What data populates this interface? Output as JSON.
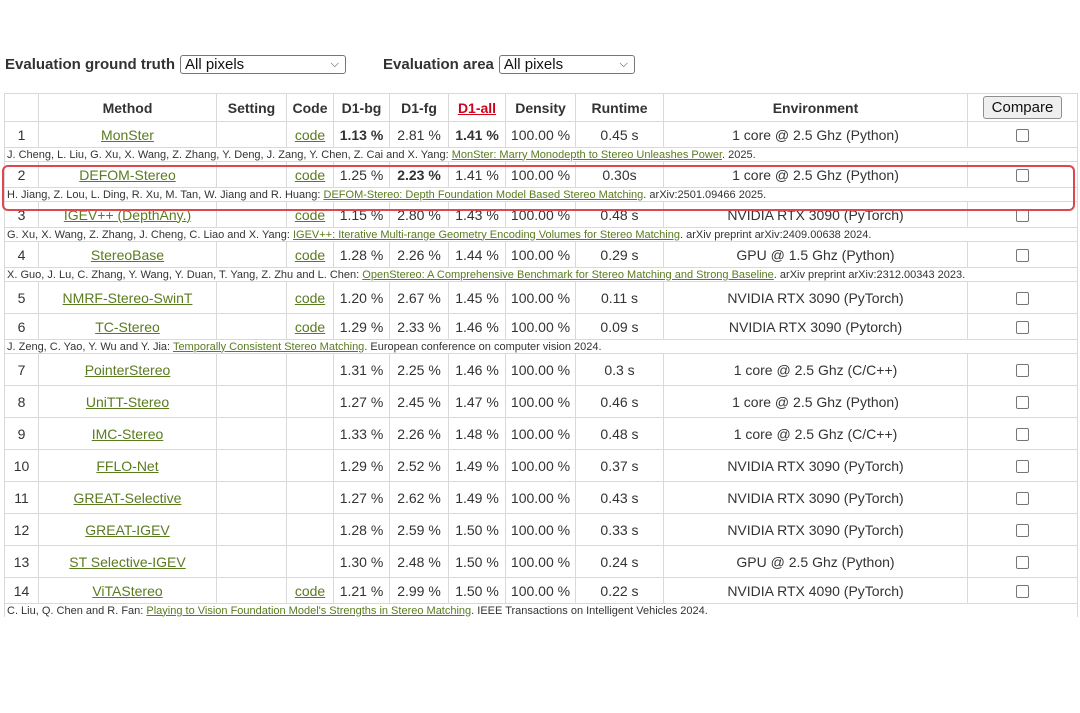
{
  "filters": {
    "truth_label": "Evaluation ground truth",
    "truth_value": "All pixels",
    "area_label": "Evaluation area",
    "area_value": "All pixels"
  },
  "table": {
    "headers": {
      "rank": "",
      "method": "Method",
      "setting": "Setting",
      "code": "Code",
      "d1bg": "D1-bg",
      "d1fg": "D1-fg",
      "d1all": "D1-all",
      "density": "Density",
      "runtime": "Runtime",
      "environment": "Environment",
      "compare": "Compare"
    },
    "rows": [
      {
        "rank": "1",
        "method": "MonSter",
        "code": "code",
        "d1bg": "1.13 %",
        "d1fg": "2.81 %",
        "d1all": "1.41 %",
        "density": "100.00 %",
        "runtime": "0.45 s",
        "env": "1 core @ 2.5 Ghz (Python)",
        "cite_pre": "J. Cheng, L. Liu, G. Xu, X. Wang, Z. Zhang, Y. Deng, J. Zang, Y. Chen, Z. Cai and X. Yang: ",
        "cite_link": "MonSter: Marry Monodepth to Stereo Unleashes Power",
        "cite_post": ". 2025."
      },
      {
        "rank": "2",
        "method": "DEFOM-Stereo",
        "code": "code",
        "d1bg": "1.25 %",
        "d1fg": "2.23 %",
        "d1all": "1.41 %",
        "density": "100.00 %",
        "runtime": "0.30s",
        "env": "1 core @ 2.5 Ghz (Python)",
        "cite_pre": "H. Jiang, Z. Lou, L. Ding, R. Xu, M. Tan, W. Jiang and R. Huang: ",
        "cite_link": "DEFOM-Stereo: Depth Foundation Model Based Stereo Matching",
        "cite_post": ". arXiv:2501.09466 2025."
      },
      {
        "rank": "3",
        "method": "IGEV++ (DepthAny.)",
        "code": "code",
        "d1bg": "1.15 %",
        "d1fg": "2.80 %",
        "d1all": "1.43 %",
        "density": "100.00 %",
        "runtime": "0.48 s",
        "env": "NVIDIA RTX 3090 (PyTorch)",
        "cite_pre": "G. Xu, X. Wang, Z. Zhang, J. Cheng, C. Liao and X. Yang: ",
        "cite_link": "IGEV++: Iterative Multi-range Geometry Encoding Volumes for Stereo Matching",
        "cite_post": ". arXiv preprint arXiv:2409.00638 2024."
      },
      {
        "rank": "4",
        "method": "StereoBase",
        "code": "code",
        "d1bg": "1.28 %",
        "d1fg": "2.26 %",
        "d1all": "1.44 %",
        "density": "100.00 %",
        "runtime": "0.29 s",
        "env": "GPU @ 1.5 Ghz (Python)",
        "cite_pre": "X. Guo, J. Lu, C. Zhang, Y. Wang, Y. Duan, T. Yang, Z. Zhu and L. Chen: ",
        "cite_link": "OpenStereo: A Comprehensive Benchmark for Stereo Matching and Strong Baseline",
        "cite_post": ". arXiv preprint arXiv:2312.00343 2023."
      },
      {
        "rank": "5",
        "method": "NMRF-Stereo-SwinT",
        "code": "code",
        "d1bg": "1.20 %",
        "d1fg": "2.67 %",
        "d1all": "1.45 %",
        "density": "100.00 %",
        "runtime": "0.11 s",
        "env": "NVIDIA RTX 3090 (PyTorch)"
      },
      {
        "rank": "6",
        "method": "TC-Stereo",
        "code": "code",
        "d1bg": "1.29 %",
        "d1fg": "2.33 %",
        "d1all": "1.46 %",
        "density": "100.00 %",
        "runtime": "0.09 s",
        "env": "NVIDIA RTX 3090 (Pytorch)",
        "cite_pre": "J. Zeng, C. Yao, Y. Wu and Y. Jia: ",
        "cite_link": "Temporally Consistent Stereo Matching",
        "cite_post": ". European conference on computer vision 2024."
      },
      {
        "rank": "7",
        "method": "PointerStereo",
        "code": "",
        "d1bg": "1.31 %",
        "d1fg": "2.25 %",
        "d1all": "1.46 %",
        "density": "100.00 %",
        "runtime": "0.3 s",
        "env": "1 core @ 2.5 Ghz (C/C++)"
      },
      {
        "rank": "8",
        "method": "UniTT-Stereo",
        "code": "",
        "d1bg": "1.27 %",
        "d1fg": "2.45 %",
        "d1all": "1.47 %",
        "density": "100.00 %",
        "runtime": "0.46 s",
        "env": "1 core @ 2.5 Ghz (Python)"
      },
      {
        "rank": "9",
        "method": "IMC-Stereo",
        "code": "",
        "d1bg": "1.33 %",
        "d1fg": "2.26 %",
        "d1all": "1.48 %",
        "density": "100.00 %",
        "runtime": "0.48 s",
        "env": "1 core @ 2.5 Ghz (C/C++)"
      },
      {
        "rank": "10",
        "method": "FFLO-Net",
        "code": "",
        "d1bg": "1.29 %",
        "d1fg": "2.52 %",
        "d1all": "1.49 %",
        "density": "100.00 %",
        "runtime": "0.37 s",
        "env": "NVIDIA RTX 3090 (PyTorch)"
      },
      {
        "rank": "11",
        "method": "GREAT-Selective",
        "code": "",
        "d1bg": "1.27 %",
        "d1fg": "2.62 %",
        "d1all": "1.49 %",
        "density": "100.00 %",
        "runtime": "0.43 s",
        "env": "NVIDIA RTX 3090 (PyTorch)"
      },
      {
        "rank": "12",
        "method": "GREAT-IGEV",
        "code": "",
        "d1bg": "1.28 %",
        "d1fg": "2.59 %",
        "d1all": "1.50 %",
        "density": "100.00 %",
        "runtime": "0.33 s",
        "env": "NVIDIA RTX 3090 (PyTorch)"
      },
      {
        "rank": "13",
        "method": "ST Selective-IGEV",
        "code": "",
        "d1bg": "1.30 %",
        "d1fg": "2.48 %",
        "d1all": "1.50 %",
        "density": "100.00 %",
        "runtime": "0.24 s",
        "env": "GPU @ 2.5 Ghz (Python)"
      },
      {
        "rank": "14",
        "method": "ViTAStereo",
        "code": "code",
        "d1bg": "1.21 %",
        "d1fg": "2.99 %",
        "d1all": "1.50 %",
        "density": "100.00 %",
        "runtime": "0.22 s",
        "env": "NVIDIA RTX 4090 (PyTorch)",
        "cite_pre": "C. Liu, Q. Chen and R. Fan: ",
        "cite_link": "Playing to Vision Foundation Model's Strengths in Stereo Matching",
        "cite_post": ". IEEE Transactions on Intelligent Vehicles 2024."
      }
    ]
  },
  "colors": {
    "link": "#5a7b1f",
    "sorted_header": "#d0021b",
    "highlight_box": "#e0474c"
  }
}
